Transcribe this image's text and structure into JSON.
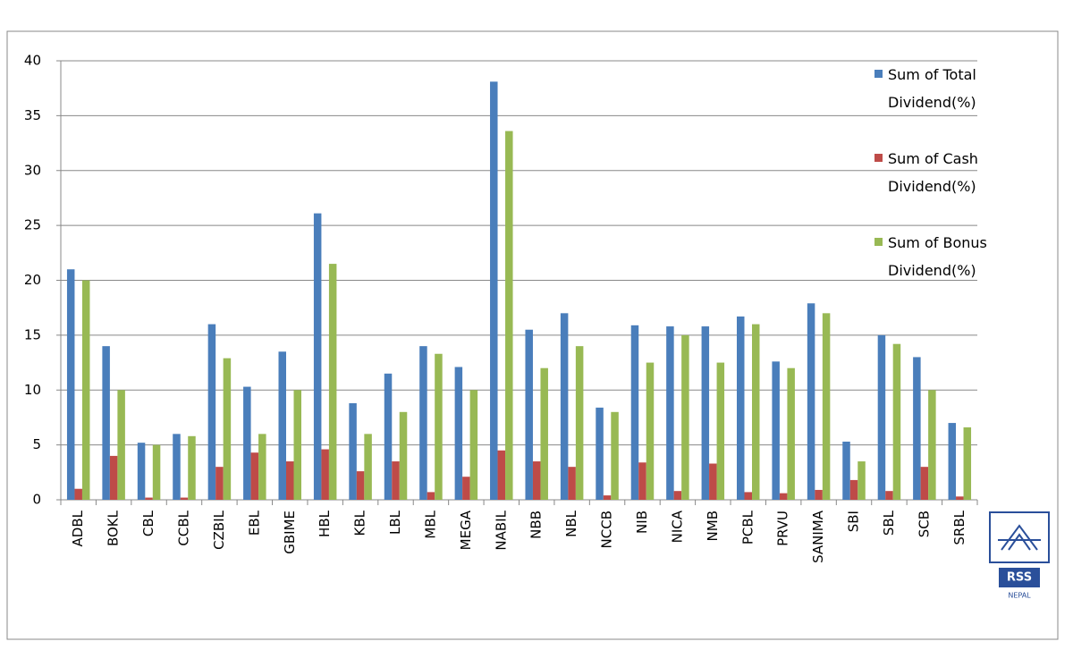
{
  "chart_data": {
    "type": "bar",
    "categories": [
      "ADBL",
      "BOKL",
      "CBL",
      "CCBL",
      "CZBIL",
      "EBL",
      "GBIME",
      "HBL",
      "KBL",
      "LBL",
      "MBL",
      "MEGA",
      "NABIL",
      "NBB",
      "NBL",
      "NCCB",
      "NIB",
      "NICA",
      "NMB",
      "PCBL",
      "PRVU",
      "SANIMA",
      "SBI",
      "SBL",
      "SCB",
      "SRBL"
    ],
    "series": [
      {
        "name": "Sum of Total Dividend(%)",
        "color": "#4a7ebb",
        "values": [
          21,
          14,
          5.2,
          6,
          16,
          10.3,
          13.5,
          26.1,
          8.8,
          11.5,
          14,
          12.1,
          38.1,
          15.5,
          17,
          8.4,
          15.9,
          15.8,
          15.8,
          16.7,
          12.6,
          17.9,
          5.3,
          15,
          13,
          7
        ]
      },
      {
        "name": "Sum of Cash Dividend(%)",
        "color": "#be4b48",
        "values": [
          1,
          4,
          0.2,
          0.2,
          3,
          4.3,
          3.5,
          4.6,
          2.6,
          3.5,
          0.7,
          2.1,
          4.5,
          3.5,
          3,
          0.4,
          3.4,
          0.8,
          3.3,
          0.7,
          0.6,
          0.9,
          1.8,
          0.8,
          3,
          0.3
        ]
      },
      {
        "name": "Sum of Bonus Dividend(%)",
        "color": "#98b954",
        "values": [
          20,
          10,
          5,
          5.8,
          12.9,
          6,
          10,
          21.5,
          6,
          8,
          13.3,
          10,
          33.6,
          12,
          14,
          8,
          12.5,
          15,
          12.5,
          16,
          12,
          17,
          3.5,
          14.2,
          10,
          6.6
        ]
      }
    ],
    "ylim": [
      0,
      40
    ],
    "yticks": [
      0,
      5,
      10,
      15,
      20,
      25,
      30,
      35,
      40
    ],
    "grid": true,
    "legend": "right"
  },
  "logo": {
    "text": "RSS",
    "subtext": "NEPAL"
  }
}
